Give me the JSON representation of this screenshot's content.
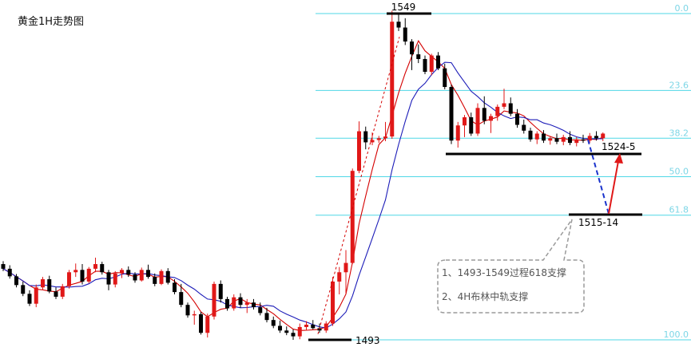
{
  "chart_data": {
    "type": "candlestick",
    "title": "黄金1H走势图",
    "y_axis": {
      "min": 1490,
      "max": 1551
    },
    "colors": {
      "up": "#e01818",
      "down": "#000000",
      "fib": "#4fd7e6",
      "fib_text": "#7dd6e6",
      "ma_fast": "#d40000",
      "ma_slow": "#1c1cb8",
      "projection_down": "#1a33cc",
      "projection_up": "#e01818",
      "dashed_trend": "#d40000",
      "support": "#000000",
      "note_border": "#9a9a9a",
      "note_text": "#555555"
    },
    "fib_levels": [
      {
        "label": "0.0",
        "price": 1549.0
      },
      {
        "label": "23.6",
        "price": 1535.8
      },
      {
        "label": "38.2",
        "price": 1527.6
      },
      {
        "label": "50.0",
        "price": 1521.0
      },
      {
        "label": "61.8",
        "price": 1514.4
      },
      {
        "label": "100.0",
        "price": 1493.0
      }
    ],
    "annotations": {
      "high_label": "1549",
      "low_label": "1493",
      "support_1_label": "1524-5",
      "support_2_label": "1515-14"
    },
    "note_lines": [
      "1、1493-1549过程618支撑",
      "2、4H布林中轨支撑"
    ],
    "candles": [
      [
        1506.0,
        1506.5,
        1504.8,
        1505.2
      ],
      [
        1505.2,
        1505.8,
        1503.5,
        1503.9
      ],
      [
        1503.9,
        1504.3,
        1502.0,
        1502.4
      ],
      [
        1502.4,
        1503.0,
        1500.5,
        1500.9
      ],
      [
        1500.9,
        1501.5,
        1498.8,
        1499.2
      ],
      [
        1499.2,
        1502.5,
        1498.6,
        1502.0
      ],
      [
        1502.0,
        1503.8,
        1501.5,
        1503.4
      ],
      [
        1503.4,
        1504.0,
        1501.0,
        1501.3
      ],
      [
        1501.3,
        1502.0,
        1500.0,
        1500.4
      ],
      [
        1500.4,
        1502.6,
        1500.0,
        1502.2
      ],
      [
        1502.2,
        1505.0,
        1501.8,
        1504.6
      ],
      [
        1504.6,
        1506.1,
        1503.8,
        1505.0
      ],
      [
        1505.0,
        1506.0,
        1502.5,
        1503.0
      ],
      [
        1503.0,
        1505.5,
        1502.7,
        1505.2
      ],
      [
        1505.2,
        1507.1,
        1504.6,
        1506.0
      ],
      [
        1506.0,
        1506.4,
        1504.2,
        1504.6
      ],
      [
        1504.6,
        1505.0,
        1501.5,
        1502.5
      ],
      [
        1502.5,
        1504.8,
        1502.0,
        1504.4
      ],
      [
        1504.4,
        1505.3,
        1503.6,
        1505.0
      ],
      [
        1505.0,
        1505.6,
        1503.8,
        1504.2
      ],
      [
        1504.2,
        1504.6,
        1502.8,
        1503.2
      ],
      [
        1503.2,
        1505.4,
        1503.0,
        1505.0
      ],
      [
        1505.0,
        1505.9,
        1503.5,
        1503.8
      ],
      [
        1503.8,
        1504.4,
        1502.2,
        1502.6
      ],
      [
        1502.6,
        1505.1,
        1502.4,
        1504.8
      ],
      [
        1504.8,
        1505.3,
        1502.5,
        1502.8
      ],
      [
        1502.8,
        1503.4,
        1500.8,
        1501.2
      ],
      [
        1501.2,
        1502.6,
        1498.6,
        1499.0
      ],
      [
        1499.0,
        1499.4,
        1496.8,
        1497.2
      ],
      [
        1497.2,
        1498.0,
        1495.6,
        1497.4
      ],
      [
        1497.4,
        1497.8,
        1493.9,
        1494.2
      ],
      [
        1494.2,
        1497.5,
        1493.4,
        1497.0
      ],
      [
        1497.0,
        1503.0,
        1496.5,
        1502.6
      ],
      [
        1502.6,
        1503.2,
        1499.4,
        1500.0
      ],
      [
        1500.0,
        1500.4,
        1498.0,
        1498.4
      ],
      [
        1498.4,
        1500.8,
        1498.0,
        1500.3
      ],
      [
        1500.3,
        1501.0,
        1498.5,
        1499.0
      ],
      [
        1499.0,
        1500.0,
        1497.6,
        1499.4
      ],
      [
        1499.4,
        1500.0,
        1498.2,
        1498.6
      ],
      [
        1498.6,
        1499.4,
        1497.2,
        1497.6
      ],
      [
        1497.6,
        1498.5,
        1496.0,
        1496.4
      ],
      [
        1496.4,
        1497.0,
        1495.0,
        1495.4
      ],
      [
        1495.4,
        1496.3,
        1494.2,
        1494.6
      ],
      [
        1494.6,
        1495.3,
        1493.8,
        1494.2
      ],
      [
        1494.2,
        1494.8,
        1493.0,
        1493.6
      ],
      [
        1493.6,
        1495.8,
        1493.1,
        1495.2
      ],
      [
        1495.2,
        1496.2,
        1494.6,
        1495.6
      ],
      [
        1495.6,
        1496.4,
        1494.8,
        1495.0
      ],
      [
        1495.0,
        1495.8,
        1494.2,
        1494.6
      ],
      [
        1494.6,
        1496.2,
        1494.2,
        1495.8
      ],
      [
        1495.8,
        1503.8,
        1495.4,
        1503.0
      ],
      [
        1503.0,
        1505.5,
        1500.8,
        1504.6
      ],
      [
        1504.6,
        1508.4,
        1501.0,
        1506.2
      ],
      [
        1506.2,
        1522.4,
        1506.0,
        1522.0
      ],
      [
        1522.0,
        1530.5,
        1521.6,
        1528.8
      ],
      [
        1528.8,
        1529.6,
        1525.7,
        1526.9
      ],
      [
        1526.9,
        1528.6,
        1526.4,
        1527.3
      ],
      [
        1527.3,
        1528.0,
        1526.8,
        1527.6
      ],
      [
        1527.6,
        1530.4,
        1527.1,
        1527.9
      ],
      [
        1527.9,
        1549.5,
        1527.5,
        1547.6
      ],
      [
        1547.6,
        1549.0,
        1546.0,
        1546.6
      ],
      [
        1546.6,
        1548.2,
        1543.6,
        1544.2
      ],
      [
        1544.2,
        1544.6,
        1539.3,
        1542.0
      ],
      [
        1542.0,
        1543.7,
        1540.5,
        1541.2
      ],
      [
        1541.2,
        1541.8,
        1538.6,
        1539.0
      ],
      [
        1539.0,
        1542.1,
        1538.4,
        1541.8
      ],
      [
        1541.8,
        1542.4,
        1539.3,
        1539.6
      ],
      [
        1539.6,
        1540.4,
        1536.0,
        1536.4
      ],
      [
        1536.4,
        1536.8,
        1526.6,
        1527.2
      ],
      [
        1527.2,
        1530.4,
        1526.0,
        1529.8
      ],
      [
        1529.8,
        1531.6,
        1527.8,
        1531.2
      ],
      [
        1531.2,
        1532.0,
        1528.0,
        1528.4
      ],
      [
        1528.4,
        1533.6,
        1528.0,
        1532.8
      ],
      [
        1532.8,
        1534.8,
        1530.0,
        1530.6
      ],
      [
        1530.6,
        1531.8,
        1528.5,
        1531.4
      ],
      [
        1531.4,
        1533.4,
        1530.6,
        1533.0
      ],
      [
        1533.0,
        1536.1,
        1532.6,
        1533.6
      ],
      [
        1533.6,
        1534.6,
        1531.4,
        1531.8
      ],
      [
        1531.8,
        1532.6,
        1529.4,
        1529.9
      ],
      [
        1529.9,
        1530.8,
        1528.4,
        1528.9
      ],
      [
        1528.9,
        1529.4,
        1527.0,
        1527.4
      ],
      [
        1527.4,
        1528.8,
        1526.6,
        1528.4
      ],
      [
        1528.4,
        1529.0,
        1526.8,
        1527.2
      ],
      [
        1527.2,
        1528.0,
        1526.5,
        1527.6
      ],
      [
        1527.6,
        1528.4,
        1526.6,
        1527.0
      ],
      [
        1527.0,
        1528.2,
        1526.4,
        1527.8
      ],
      [
        1527.8,
        1528.8,
        1526.4,
        1526.8
      ],
      [
        1526.8,
        1527.8,
        1526.2,
        1527.4
      ],
      [
        1527.4,
        1528.2,
        1526.8,
        1527.2
      ],
      [
        1527.2,
        1528.5,
        1526.8,
        1528.0
      ],
      [
        1528.0,
        1528.8,
        1527.2,
        1527.6
      ],
      [
        1527.6,
        1528.6,
        1527.1,
        1528.4
      ]
    ]
  }
}
